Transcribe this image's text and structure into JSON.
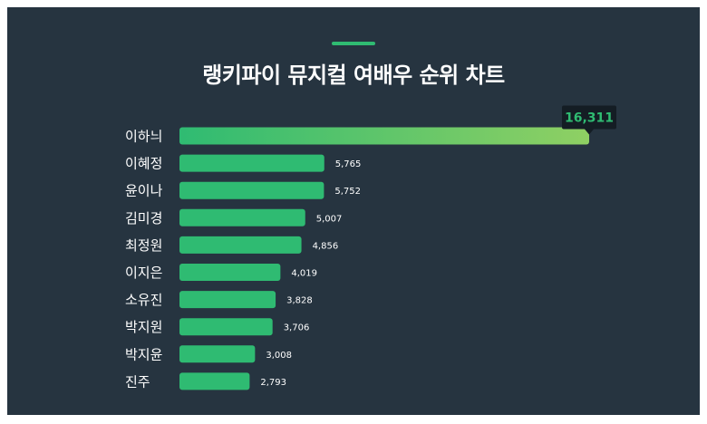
{
  "title": "랭키파이 뮤지컬 여배우 순위 차트",
  "colors": {
    "background": "#263440",
    "accent": "#2fbb72",
    "bar": "#2fbb72",
    "top_bar_start": "#2fbb72",
    "top_bar_end": "#8fd063",
    "top_label_bg": "#141d24",
    "top_label_text": "#2fbb72",
    "text": "#ffffff"
  },
  "chart_data": {
    "type": "bar",
    "orientation": "horizontal",
    "title": "랭키파이 뮤지컬 여배우 순위 차트",
    "categories": [
      "이하늬",
      "이혜정",
      "윤이나",
      "김미경",
      "최정원",
      "이지은",
      "소유진",
      "박지원",
      "박지윤",
      "진주"
    ],
    "values": [
      16311,
      5765,
      5752,
      5007,
      4856,
      4019,
      3828,
      3706,
      3008,
      2793
    ],
    "value_labels": [
      "16,311",
      "5,765",
      "5,752",
      "5,007",
      "4,856",
      "4,019",
      "3,828",
      "3,706",
      "3,008",
      "2,793"
    ],
    "xlim": [
      0,
      16311
    ],
    "grid": false,
    "legend": "none"
  }
}
